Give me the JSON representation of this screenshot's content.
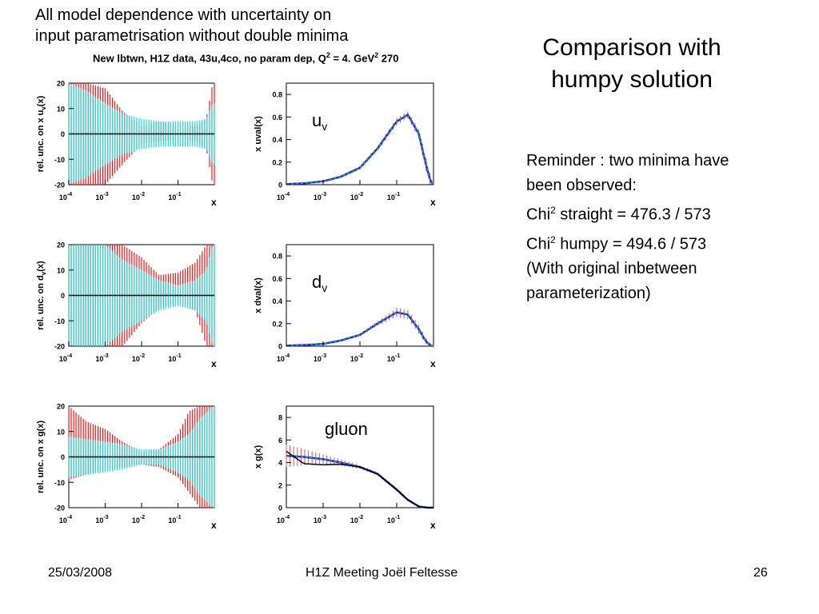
{
  "header": {
    "line1": "All model dependence with uncertainty  on",
    "line2": "input parametrisation without double minima"
  },
  "figure_title": {
    "main": "New lbtwn, H1Z data, 43u,4co, no param dep, Q",
    "sup1": "2",
    "mid": " = 4. GeV",
    "sup2": "2",
    "tail": " 270"
  },
  "side": {
    "title_line1": "Comparison with",
    "title_line2": "humpy solution",
    "reminder_line1": "Reminder : two minima have",
    "reminder_line2": "been observed:",
    "chi_label": "Chi",
    "chi_sup": "2",
    "straight_text": " straight = 476.3 / 573",
    "humpy_text": " humpy =  494.6 / 573",
    "orig_line1": "(With original inbetween",
    "orig_line2": " parameterization)"
  },
  "footer": {
    "date": "25/03/2008",
    "meeting": "H1Z Meeting     Joël Feltesse",
    "page": "26"
  },
  "colors": {
    "cyan_band": "#22dada",
    "red_band": "#ee1c1c",
    "blue_line": "#1a32c8",
    "black_line": "#000000"
  },
  "chart_data": [
    {
      "type": "area",
      "name": "uv-uncertainty",
      "ylabel": "rel. unc. on x u",
      "ylabel_sub": "v",
      "ylabel_tail": "(x)",
      "xlabel": "x",
      "xscale": "log",
      "xlim": [
        0.0001,
        1
      ],
      "ylim": [
        -20,
        20
      ],
      "x_ticks": [
        "10",
        "10",
        "10",
        "10"
      ],
      "x_ticks_exp": [
        "-4",
        "-3",
        "-2",
        "-1"
      ],
      "y_ticks": [
        "20",
        "10",
        "0",
        "-10",
        "-20"
      ],
      "x": [
        0.0001,
        0.0003,
        0.001,
        0.003,
        0.01,
        0.03,
        0.1,
        0.3,
        0.6,
        0.9
      ],
      "cyan_half_width": [
        20,
        17,
        12,
        8,
        6,
        5,
        5,
        5,
        6,
        12
      ],
      "red_upper": [
        20,
        20,
        18,
        9,
        3,
        5,
        3,
        3,
        6,
        20
      ],
      "red_lower": [
        -20,
        -20,
        -20,
        -12,
        -4,
        -3,
        -2,
        -3,
        -6,
        -20
      ]
    },
    {
      "type": "line",
      "name": "uv-distribution",
      "label": "u",
      "label_sub": "v",
      "ylabel": "x uval(x)",
      "xlabel": "x",
      "xscale": "log",
      "xlim": [
        0.0001,
        1
      ],
      "ylim": [
        0,
        0.9
      ],
      "x_ticks": [
        "10",
        "10",
        "10",
        "10"
      ],
      "x_ticks_exp": [
        "-4",
        "-3",
        "-2",
        "-1"
      ],
      "y_ticks": [
        "0.8",
        "0.6",
        "0.4",
        "0.2",
        "0"
      ],
      "x": [
        0.0001,
        0.0003,
        0.001,
        0.003,
        0.01,
        0.03,
        0.1,
        0.2,
        0.4,
        0.6,
        0.8,
        0.95
      ],
      "central": [
        0.005,
        0.012,
        0.03,
        0.07,
        0.15,
        0.32,
        0.56,
        0.62,
        0.45,
        0.2,
        0.05,
        0.0
      ],
      "band_half_width": [
        0.005,
        0.008,
        0.01,
        0.012,
        0.015,
        0.02,
        0.03,
        0.03,
        0.04,
        0.06,
        0.05,
        0.02
      ]
    },
    {
      "type": "area",
      "name": "dv-uncertainty",
      "ylabel": "rel. unc. on d",
      "ylabel_sub": "v",
      "ylabel_tail": "(x)",
      "xlabel": "x",
      "xscale": "log",
      "xlim": [
        0.0001,
        1
      ],
      "ylim": [
        -20,
        20
      ],
      "x_ticks": [
        "10",
        "10",
        "10",
        "10"
      ],
      "x_ticks_exp": [
        "-4",
        "-3",
        "-2",
        "-1"
      ],
      "y_ticks": [
        "20",
        "10",
        "0",
        "-10",
        "-20"
      ],
      "x": [
        0.0001,
        0.0003,
        0.001,
        0.003,
        0.01,
        0.03,
        0.1,
        0.3,
        0.6,
        0.9
      ],
      "cyan_half_width": [
        20,
        20,
        20,
        14,
        10,
        6,
        4,
        6,
        10,
        20
      ],
      "red_upper": [
        20,
        20,
        20,
        20,
        15,
        8,
        9,
        13,
        20,
        20
      ],
      "red_lower": [
        -20,
        -20,
        -20,
        -20,
        -11,
        -5,
        -3,
        -6,
        -20,
        -20
      ]
    },
    {
      "type": "line",
      "name": "dv-distribution",
      "label": "d",
      "label_sub": "v",
      "ylabel": "x dval(x)",
      "xlabel": "x",
      "xscale": "log",
      "xlim": [
        0.0001,
        1
      ],
      "ylim": [
        0,
        0.9
      ],
      "x_ticks": [
        "10",
        "10",
        "10",
        "10"
      ],
      "x_ticks_exp": [
        "-4",
        "-3",
        "-2",
        "-1"
      ],
      "y_ticks": [
        "0.8",
        "0.6",
        "0.4",
        "0.2",
        "0"
      ],
      "x": [
        0.0001,
        0.0003,
        0.001,
        0.003,
        0.01,
        0.03,
        0.1,
        0.2,
        0.4,
        0.6,
        0.8,
        0.95
      ],
      "central": [
        0.005,
        0.01,
        0.02,
        0.05,
        0.1,
        0.2,
        0.3,
        0.28,
        0.15,
        0.05,
        0.01,
        0.0
      ],
      "band_half_width": [
        0.005,
        0.006,
        0.008,
        0.01,
        0.012,
        0.02,
        0.04,
        0.04,
        0.04,
        0.03,
        0.02,
        0.01
      ]
    },
    {
      "type": "area",
      "name": "gluon-uncertainty",
      "ylabel": "rel. unc. on x g(x)",
      "ylabel_sub": "",
      "ylabel_tail": "",
      "xlabel": "x",
      "xscale": "log",
      "xlim": [
        0.0001,
        1
      ],
      "ylim": [
        -20,
        20
      ],
      "x_ticks": [
        "10",
        "10",
        "10",
        "10"
      ],
      "x_ticks_exp": [
        "-4",
        "-3",
        "-2",
        "-1"
      ],
      "y_ticks": [
        "20",
        "10",
        "0",
        "-10",
        "-20"
      ],
      "x": [
        0.0001,
        0.0003,
        0.001,
        0.003,
        0.01,
        0.03,
        0.1,
        0.2,
        0.4,
        0.9
      ],
      "cyan_half_width": [
        8,
        7,
        6,
        5,
        3,
        3,
        6,
        9,
        15,
        20
      ],
      "red_upper": [
        20,
        14,
        11,
        6,
        2,
        3,
        9,
        18,
        20,
        20
      ],
      "red_lower": [
        -9,
        -7,
        -5,
        -4,
        -3,
        -4,
        -8,
        -14,
        -20,
        -20
      ]
    },
    {
      "type": "line",
      "name": "gluon-distribution",
      "label": "gluon",
      "label_sub": "",
      "ylabel": "x g(x)",
      "xlabel": "x",
      "xscale": "log",
      "xlim": [
        0.0001,
        1
      ],
      "ylim": [
        0,
        9
      ],
      "x_ticks": [
        "10",
        "10",
        "10",
        "10"
      ],
      "x_ticks_exp": [
        "-4",
        "-3",
        "-2",
        "-1"
      ],
      "y_ticks": [
        "8",
        "6",
        "4",
        "2",
        "0"
      ],
      "x": [
        0.0001,
        0.0003,
        0.001,
        0.003,
        0.01,
        0.03,
        0.1,
        0.2,
        0.4,
        0.7,
        0.95
      ],
      "central": [
        4.6,
        4.5,
        4.3,
        4.0,
        3.6,
        3.0,
        1.6,
        0.7,
        0.1,
        0.0,
        0.0
      ],
      "band_half_width": [
        1.0,
        0.7,
        0.4,
        0.3,
        0.15,
        0.15,
        0.15,
        0.12,
        0.05,
        0.02,
        0.0
      ],
      "humpy": [
        5.0,
        3.9,
        3.8,
        3.85,
        3.6,
        3.0,
        1.6,
        0.7,
        0.1,
        0.0,
        0.0
      ]
    }
  ]
}
